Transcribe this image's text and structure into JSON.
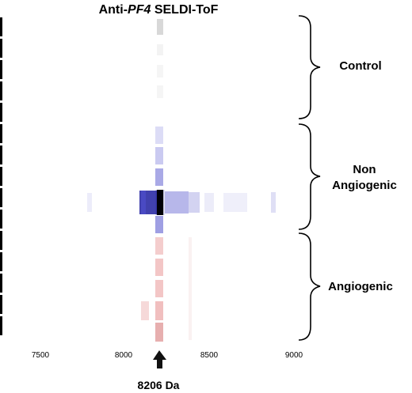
{
  "title_prefix": "Anti-",
  "title_gene": "PF4",
  "title_suffix": " SELDI-ToF",
  "groups": [
    {
      "label": "Control",
      "color": "#808080"
    },
    {
      "label": "Non\nAngiogenic",
      "color": "#1010b0"
    },
    {
      "label": "Angiogenic",
      "color": "#c03030"
    }
  ],
  "x_ticks": [
    "7500",
    "8000",
    "8500",
    "9000"
  ],
  "peak_label": "8206 Da",
  "arrow_icon": "up-arrow-icon",
  "colors": {
    "control": "#808080",
    "non_angiogenic": "#1818b8",
    "angiogenic": "#d04848"
  }
}
